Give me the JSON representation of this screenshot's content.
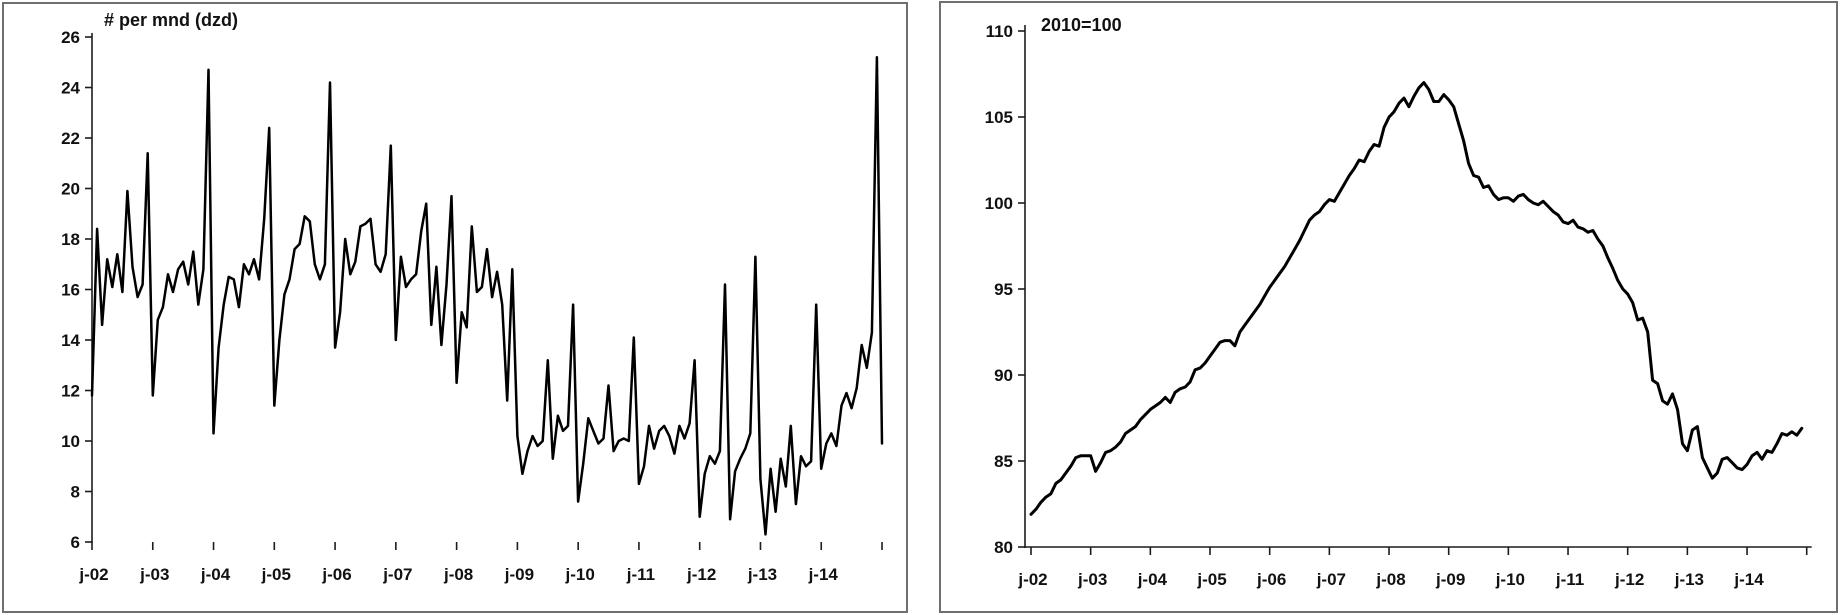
{
  "colors": {
    "line": "#000000",
    "axis": "#1c1c1c",
    "panel_border": "#6f6f6f",
    "background": "#ffffff"
  },
  "chart_data": [
    {
      "type": "line",
      "title": "# per mnd (dzd)",
      "xlabel": "",
      "ylabel": "",
      "ylim": [
        6,
        26
      ],
      "grid": false,
      "legend": "none",
      "y_ticks": [
        26,
        24,
        22,
        20,
        18,
        16,
        14,
        12,
        10,
        8,
        6
      ],
      "x_labels": [
        "j-02",
        "j-03",
        "j-04",
        "j-05",
        "j-06",
        "j-07",
        "j-08",
        "j-09",
        "j-10",
        "j-11",
        "j-12",
        "j-13",
        "j-14"
      ],
      "months_per_label": 12,
      "x_start_label": "jan-2002",
      "values": [
        11.8,
        18.4,
        14.6,
        17.2,
        16.1,
        17.4,
        15.9,
        19.9,
        16.9,
        15.7,
        16.2,
        21.4,
        11.8,
        14.8,
        15.3,
        16.6,
        15.9,
        16.8,
        17.1,
        16.2,
        17.5,
        15.4,
        16.8,
        24.7,
        10.3,
        13.7,
        15.4,
        16.5,
        16.4,
        15.3,
        17.0,
        16.6,
        17.2,
        16.4,
        18.8,
        22.4,
        11.4,
        14.0,
        15.8,
        16.4,
        17.6,
        17.8,
        18.9,
        18.7,
        17.0,
        16.4,
        17.0,
        24.2,
        13.7,
        15.1,
        18.0,
        16.6,
        17.1,
        18.5,
        18.6,
        18.8,
        17.0,
        16.7,
        17.4,
        21.7,
        14.0,
        17.3,
        16.1,
        16.4,
        16.6,
        18.3,
        19.4,
        14.6,
        16.9,
        13.8,
        16.2,
        19.7,
        12.3,
        15.1,
        14.5,
        18.5,
        15.9,
        16.1,
        17.6,
        15.7,
        16.7,
        15.4,
        11.6,
        16.8,
        10.2,
        8.7,
        9.6,
        10.2,
        9.8,
        10.0,
        13.2,
        9.3,
        11.0,
        10.4,
        10.6,
        15.4,
        7.6,
        9.1,
        10.9,
        10.4,
        9.9,
        10.1,
        12.2,
        9.6,
        10.0,
        10.1,
        10.0,
        14.1,
        8.3,
        9.0,
        10.6,
        9.7,
        10.4,
        10.6,
        10.2,
        9.5,
        10.6,
        10.1,
        10.7,
        13.2,
        7.0,
        8.7,
        9.4,
        9.1,
        9.6,
        16.2,
        6.9,
        8.8,
        9.3,
        9.7,
        10.3,
        17.3,
        8.5,
        6.3,
        8.9,
        7.2,
        9.3,
        8.2,
        10.6,
        7.5,
        9.4,
        9.0,
        9.2,
        15.4,
        8.9,
        9.9,
        10.3,
        9.8,
        11.4,
        11.9,
        11.3,
        12.1,
        13.8,
        12.9,
        14.3,
        25.2,
        9.9
      ]
    },
    {
      "type": "line",
      "title": "2010=100",
      "xlabel": "",
      "ylabel": "",
      "ylim": [
        80,
        110
      ],
      "grid": false,
      "legend": "none",
      "y_ticks": [
        110,
        105,
        100,
        95,
        90,
        85,
        80
      ],
      "x_labels": [
        "j-02",
        "j-03",
        "j-04",
        "j-05",
        "j-06",
        "j-07",
        "j-08",
        "j-09",
        "j-10",
        "j-11",
        "j-12",
        "j-13",
        "j-14"
      ],
      "months_per_label": 12,
      "x_start_label": "jan-2002",
      "values": [
        81.9,
        82.2,
        82.6,
        82.9,
        83.1,
        83.7,
        83.9,
        84.3,
        84.7,
        85.2,
        85.3,
        85.3,
        85.3,
        84.4,
        84.9,
        85.5,
        85.6,
        85.8,
        86.1,
        86.6,
        86.8,
        87.0,
        87.4,
        87.7,
        88.0,
        88.2,
        88.4,
        88.7,
        88.4,
        89.0,
        89.2,
        89.3,
        89.6,
        90.3,
        90.4,
        90.7,
        91.1,
        91.5,
        91.9,
        92.0,
        92.0,
        91.7,
        92.5,
        92.9,
        93.3,
        93.7,
        94.1,
        94.6,
        95.1,
        95.5,
        95.9,
        96.3,
        96.8,
        97.3,
        97.8,
        98.4,
        99.0,
        99.3,
        99.5,
        99.9,
        100.2,
        100.1,
        100.6,
        101.1,
        101.6,
        102.0,
        102.5,
        102.4,
        103.0,
        103.4,
        103.3,
        104.4,
        105.0,
        105.3,
        105.8,
        106.1,
        105.6,
        106.2,
        106.7,
        107.0,
        106.6,
        105.9,
        105.9,
        106.3,
        106.0,
        105.6,
        104.6,
        103.6,
        102.3,
        101.6,
        101.5,
        100.9,
        101.0,
        100.5,
        100.2,
        100.3,
        100.3,
        100.1,
        100.4,
        100.5,
        100.2,
        100.0,
        99.9,
        100.1,
        99.8,
        99.5,
        99.3,
        98.9,
        98.8,
        99.0,
        98.6,
        98.5,
        98.3,
        98.4,
        97.9,
        97.5,
        96.8,
        96.2,
        95.5,
        95.0,
        94.7,
        94.2,
        93.2,
        93.3,
        92.5,
        89.7,
        89.5,
        88.5,
        88.3,
        88.9,
        88.0,
        86.0,
        85.6,
        86.8,
        87.0,
        85.2,
        84.6,
        84.0,
        84.3,
        85.1,
        85.2,
        84.9,
        84.6,
        84.5,
        84.8,
        85.3,
        85.5,
        85.1,
        85.6,
        85.5,
        86.0,
        86.6,
        86.5,
        86.7,
        86.5,
        86.9
      ]
    }
  ]
}
